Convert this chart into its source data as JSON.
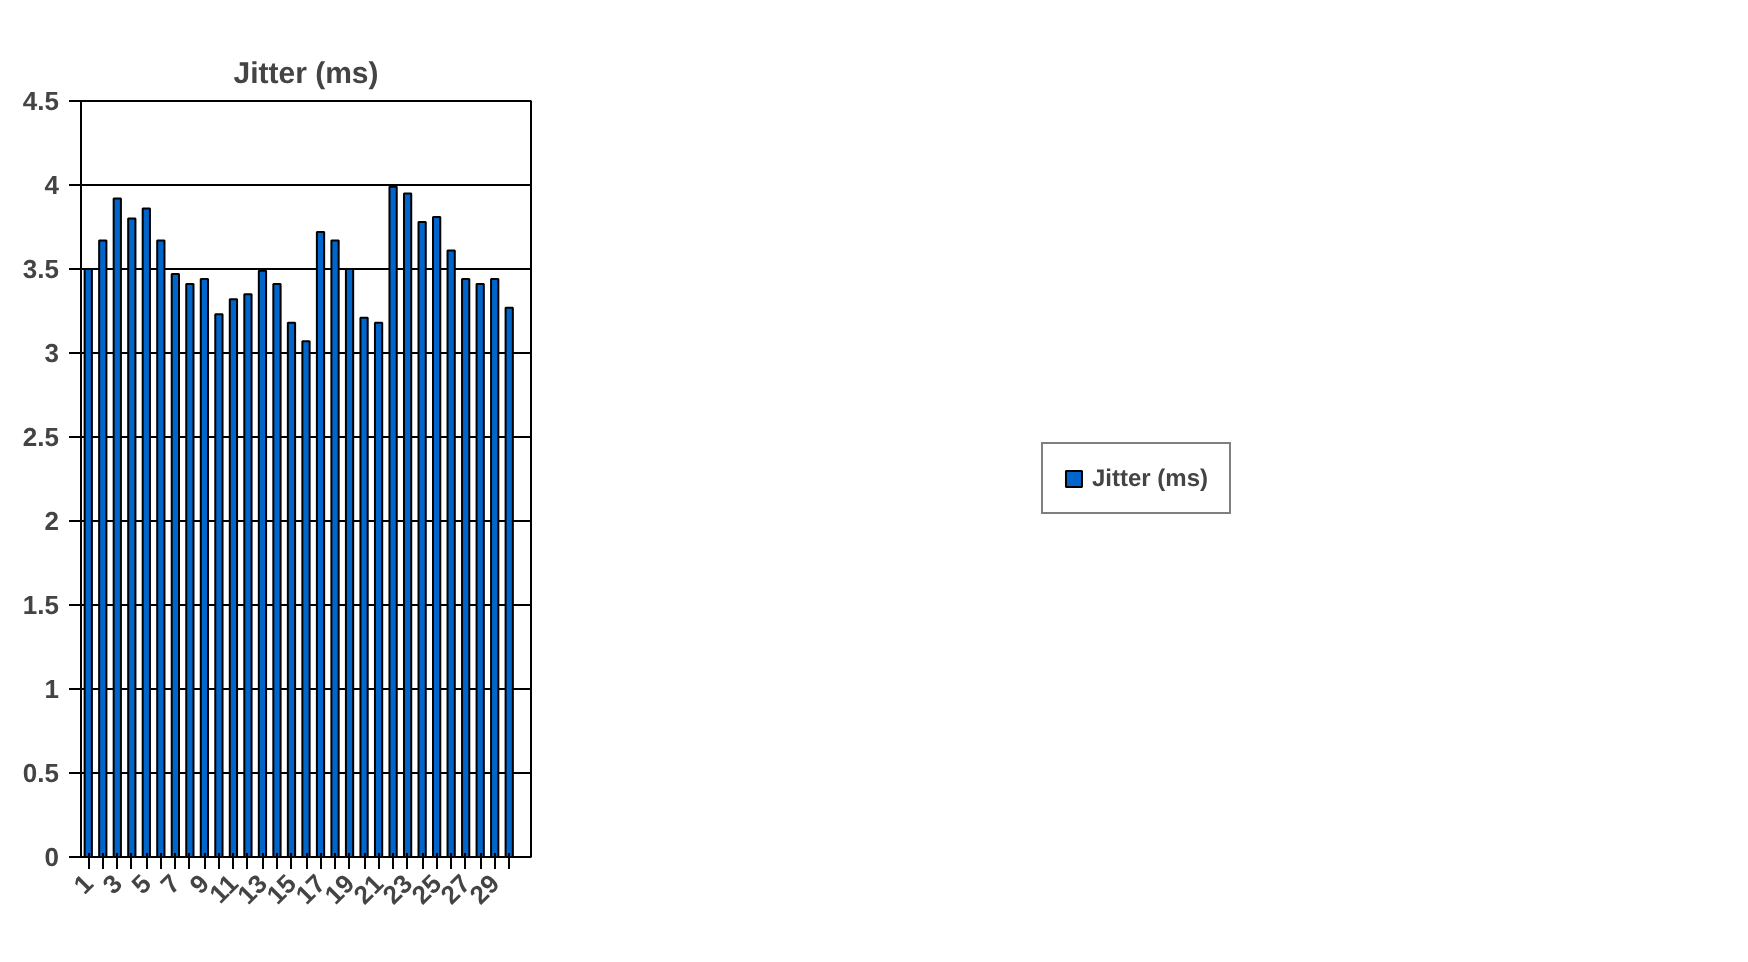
{
  "chart_data": {
    "type": "bar",
    "title": "Jitter (ms)",
    "categories": [
      "1",
      null,
      "3",
      null,
      "5",
      null,
      "7",
      null,
      "9",
      null,
      "11",
      null,
      "13",
      null,
      "15",
      null,
      "17",
      null,
      "19",
      null,
      "21",
      null,
      "23",
      null,
      "25",
      null,
      "27",
      null,
      "29",
      null
    ],
    "series": [
      {
        "name": "Jitter (ms)",
        "color": "#0066cc",
        "values": [
          3.5,
          3.67,
          3.92,
          3.8,
          3.86,
          3.67,
          3.47,
          3.41,
          3.44,
          3.23,
          3.32,
          3.35,
          3.49,
          3.41,
          3.18,
          3.07,
          3.72,
          3.67,
          3.5,
          3.21,
          3.18,
          3.99,
          3.95,
          3.78,
          3.81,
          3.61,
          3.44,
          3.41,
          3.44,
          3.27
        ]
      }
    ],
    "ylim": [
      0,
      4.5
    ],
    "yticks": [
      0,
      0.5,
      1,
      1.5,
      2,
      2.5,
      3,
      3.5,
      4,
      4.5
    ],
    "grid": "y",
    "legend": "right"
  }
}
